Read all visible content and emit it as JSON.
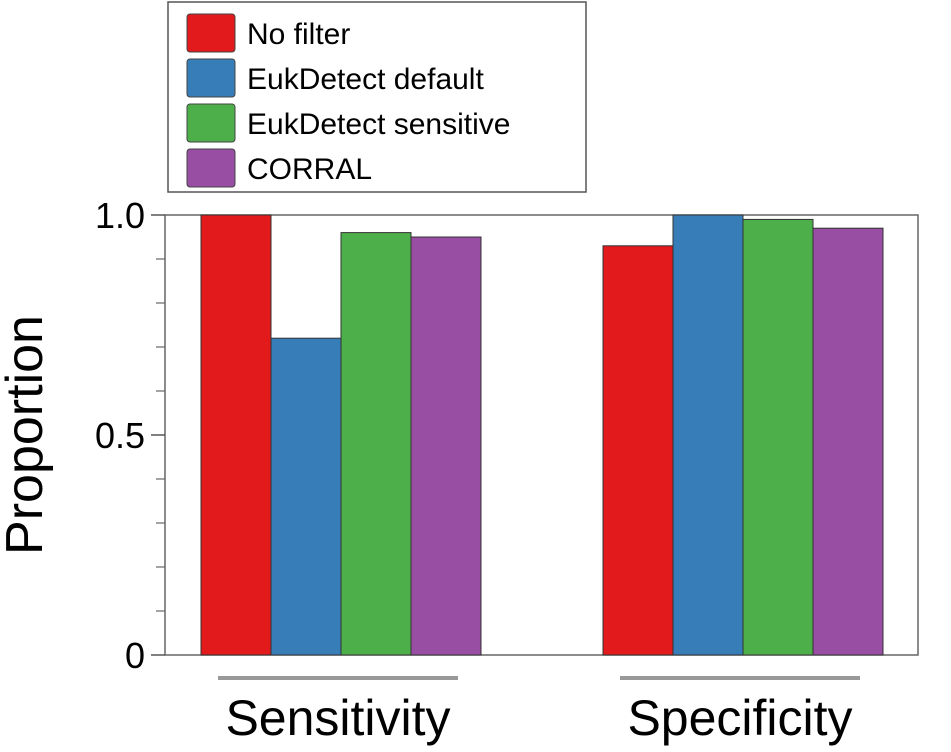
{
  "chart_data": {
    "type": "bar",
    "categories": [
      "Sensitivity",
      "Specificity"
    ],
    "series": [
      {
        "name": "No filter",
        "color": "#e31a1c",
        "values": [
          1.0,
          0.93
        ]
      },
      {
        "name": "EukDetect default",
        "color": "#377eb8",
        "values": [
          0.72,
          1.0
        ]
      },
      {
        "name": "EukDetect sensitive",
        "color": "#4daf4a",
        "values": [
          0.96,
          0.99
        ]
      },
      {
        "name": "CORRAL",
        "color": "#984ea3",
        "values": [
          0.95,
          0.97
        ]
      }
    ],
    "title": "",
    "xlabel": "",
    "ylabel": "Proportion",
    "ylim": [
      0,
      1.0
    ],
    "y_ticks": [
      {
        "value": 0,
        "label": "0"
      },
      {
        "value": 0.5,
        "label": "0.5"
      },
      {
        "value": 1.0,
        "label": "1.0"
      }
    ],
    "y_minor_ticks": [
      0.1,
      0.2,
      0.3,
      0.4,
      0.6,
      0.7,
      0.8,
      0.9
    ],
    "grid": false,
    "legend_position": "top-left, outside plot"
  }
}
